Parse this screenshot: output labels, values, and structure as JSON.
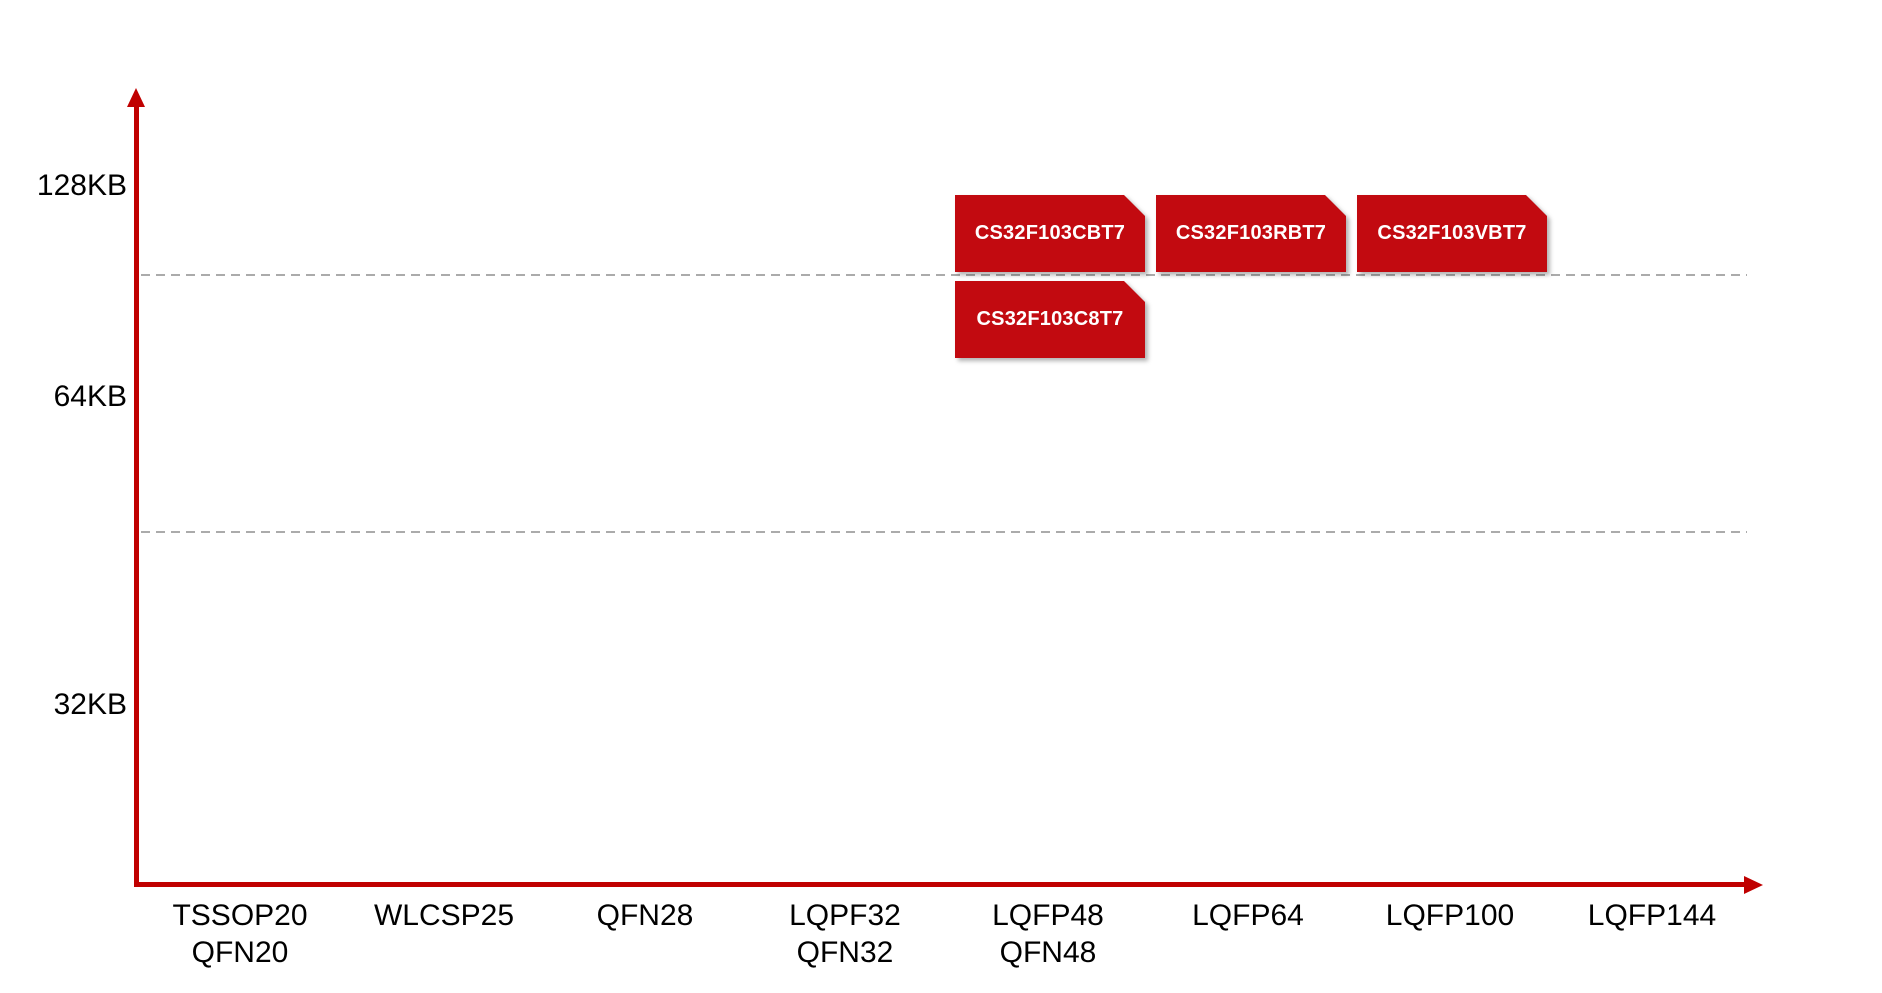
{
  "chart_data": {
    "type": "scatter",
    "title": "",
    "legend": "none",
    "grid": "two horizontal dashed gridlines",
    "x_axis": {
      "label": "",
      "categories": [
        [
          "TSSOP20",
          "QFN20"
        ],
        [
          "WLCSP25"
        ],
        [
          "QFN28"
        ],
        [
          "LQPF32",
          "QFN32"
        ],
        [
          "LQFP48",
          "QFN48"
        ],
        [
          "LQFP64"
        ],
        [
          "LQFP100"
        ],
        [
          "LQFP144"
        ]
      ]
    },
    "y_axis": {
      "label": "",
      "tick_labels": [
        "128KB",
        "64KB",
        "32KB"
      ]
    },
    "points": [
      {
        "label": "CS32F103CBT7",
        "x": "LQFP48/QFN48",
        "y": "128KB"
      },
      {
        "label": "CS32F103RBT7",
        "x": "LQFP64",
        "y": "128KB"
      },
      {
        "label": "CS32F103VBT7",
        "x": "LQFP100",
        "y": "128KB"
      },
      {
        "label": "CS32F103C8T7",
        "x": "LQFP48/QFN48",
        "y": "64KB"
      }
    ],
    "colors": {
      "chip_box": "#C20A10",
      "chip_text": "#FFFFFF",
      "axis": "#C00000",
      "gridline": "#ABABAB",
      "tick_text": "#000000"
    }
  }
}
